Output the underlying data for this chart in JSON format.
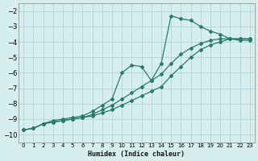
{
  "xlabel": "Humidex (Indice chaleur)",
  "bg_color": "#d6eeee",
  "grid_color": "#b8d8d8",
  "line_color": "#2a7a6a",
  "xlim": [
    -0.5,
    23.5
  ],
  "ylim": [
    -10.5,
    -1.5
  ],
  "xticks": [
    0,
    1,
    2,
    3,
    4,
    5,
    6,
    7,
    8,
    9,
    10,
    11,
    12,
    13,
    14,
    15,
    16,
    17,
    18,
    19,
    20,
    21,
    22,
    23
  ],
  "yticks": [
    -10,
    -9,
    -8,
    -7,
    -6,
    -5,
    -4,
    -3,
    -2
  ],
  "curve_x": [
    0,
    1,
    2,
    3,
    4,
    5,
    6,
    7,
    8,
    9,
    10,
    11,
    12,
    13,
    14,
    15,
    16,
    17,
    18,
    19,
    20,
    21,
    22,
    23
  ],
  "curve_y": [
    -9.7,
    -9.6,
    -9.3,
    -9.1,
    -9.0,
    -8.9,
    -8.8,
    -8.5,
    -8.1,
    -7.7,
    -6.0,
    -5.5,
    -5.6,
    -6.5,
    -5.4,
    -2.3,
    -2.5,
    -2.6,
    -3.0,
    -3.3,
    -3.5,
    -3.8,
    -3.9,
    -3.9
  ],
  "line1_x": [
    0,
    1,
    2,
    3,
    4,
    5,
    6,
    7,
    8,
    9,
    10,
    11,
    12,
    13,
    14,
    15,
    16,
    17,
    18,
    19,
    20,
    21,
    22,
    23
  ],
  "line1_y": [
    -9.7,
    -9.6,
    -9.3,
    -9.2,
    -9.1,
    -9.0,
    -8.9,
    -8.8,
    -8.6,
    -8.4,
    -8.1,
    -7.8,
    -7.5,
    -7.2,
    -6.9,
    -6.2,
    -5.6,
    -5.0,
    -4.5,
    -4.2,
    -4.0,
    -3.8,
    -3.8,
    -3.8
  ],
  "line2_x": [
    0,
    1,
    2,
    3,
    4,
    5,
    6,
    7,
    8,
    9,
    10,
    11,
    12,
    13,
    14,
    15,
    16,
    17,
    18,
    19,
    20,
    21,
    22,
    23
  ],
  "line2_y": [
    -9.7,
    -9.6,
    -9.3,
    -9.2,
    -9.1,
    -9.0,
    -8.9,
    -8.7,
    -8.4,
    -8.1,
    -7.7,
    -7.3,
    -6.9,
    -6.5,
    -6.1,
    -5.4,
    -4.8,
    -4.4,
    -4.1,
    -3.9,
    -3.8,
    -3.8,
    -3.8,
    -3.8
  ]
}
